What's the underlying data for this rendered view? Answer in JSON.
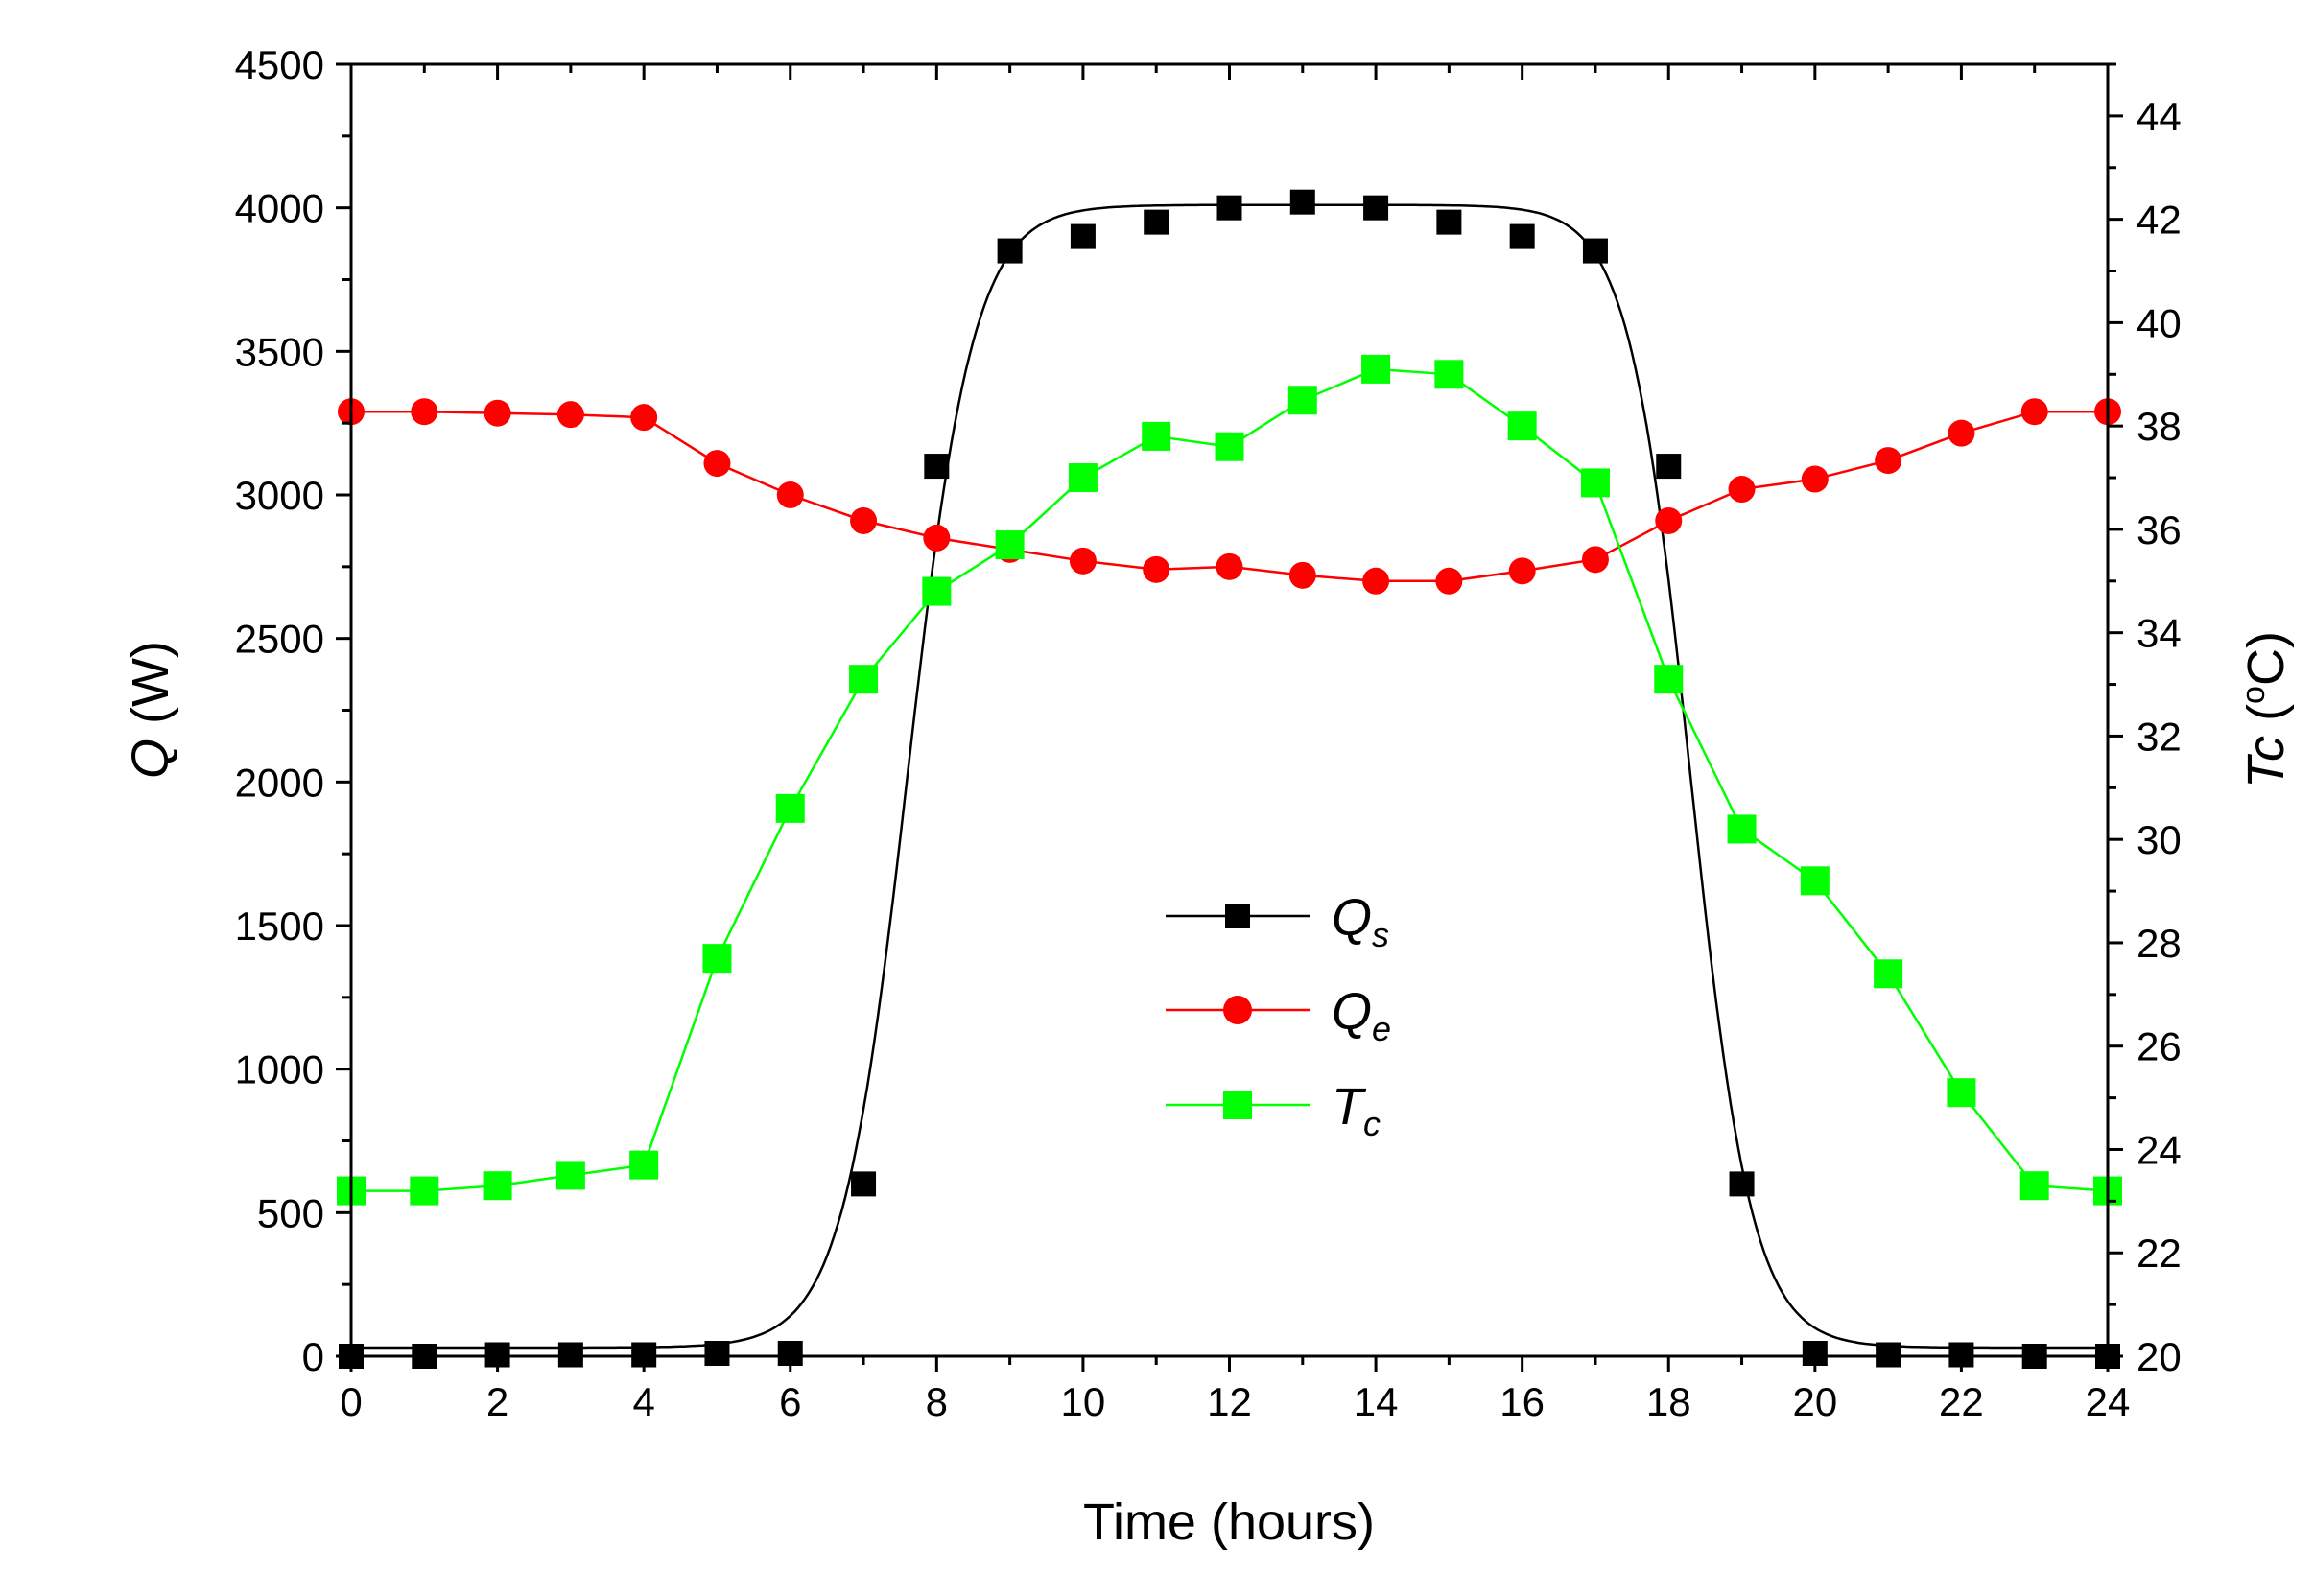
{
  "chart_data": {
    "type": "line",
    "title": "",
    "xlabel": "Time (hours)",
    "ylabel_left": {
      "main": "Q",
      "unit": " (W)"
    },
    "ylabel_right": {
      "main": "Tc",
      "unit": " (",
      "deg": "o",
      "unit_end": "C)"
    },
    "xlim": [
      0,
      24
    ],
    "ylim_left": [
      0,
      4500
    ],
    "ylim_right": [
      20,
      45
    ],
    "xticks": [
      "0",
      "2",
      "4",
      "6",
      "8",
      "10",
      "12",
      "14",
      "16",
      "18",
      "20",
      "22",
      "24"
    ],
    "yticks_left": [
      "0",
      "500",
      "1000",
      "1500",
      "2000",
      "2500",
      "3000",
      "3500",
      "4000",
      "4500"
    ],
    "yticks_right": [
      "20",
      "22",
      "24",
      "26",
      "28",
      "30",
      "32",
      "34",
      "36",
      "38",
      "40",
      "42",
      "44"
    ],
    "series": [
      {
        "name": "Qs",
        "legend_main": "Q",
        "legend_sub": "s",
        "axis": "left",
        "color": "#000000",
        "marker": "square",
        "x": [
          0,
          1,
          2,
          3,
          4,
          5,
          6,
          7,
          8,
          9,
          10,
          11,
          12,
          13,
          14,
          15,
          16,
          17,
          18,
          19,
          20,
          21,
          22,
          23,
          24
        ],
        "values": [
          0,
          0,
          5,
          5,
          5,
          10,
          10,
          600,
          3100,
          3850,
          3900,
          3950,
          4000,
          4020,
          4000,
          3950,
          3900,
          3850,
          3100,
          600,
          10,
          5,
          5,
          0,
          0
        ],
        "fit_line": true
      },
      {
        "name": "Qe",
        "legend_main": "Q",
        "legend_sub": "e",
        "axis": "left",
        "color": "#ff0000",
        "marker": "circle",
        "x": [
          0,
          1,
          2,
          3,
          4,
          5,
          6,
          7,
          8,
          9,
          10,
          11,
          12,
          13,
          14,
          15,
          16,
          17,
          18,
          19,
          20,
          21,
          22,
          23,
          24
        ],
        "values": [
          3290,
          3290,
          3285,
          3280,
          3270,
          3110,
          3000,
          2910,
          2850,
          2810,
          2770,
          2740,
          2750,
          2720,
          2700,
          2700,
          2735,
          2775,
          2910,
          3020,
          3055,
          3120,
          3215,
          3290,
          3290
        ]
      },
      {
        "name": "Tc",
        "legend_main": "T",
        "legend_sub": "c",
        "axis": "right",
        "color": "#00ff00",
        "marker": "square",
        "x": [
          0,
          1,
          2,
          3,
          4,
          5,
          6,
          7,
          8,
          9,
          10,
          11,
          12,
          13,
          14,
          15,
          16,
          17,
          18,
          19,
          20,
          21,
          22,
          23,
          24
        ],
        "values": [
          23.2,
          23.2,
          23.3,
          23.5,
          23.7,
          27.7,
          30.6,
          33.1,
          34.8,
          35.7,
          37.0,
          37.8,
          37.6,
          38.5,
          39.1,
          39.0,
          38.0,
          36.9,
          33.1,
          30.2,
          29.2,
          27.4,
          25.1,
          23.3,
          23.2
        ]
      }
    ],
    "legend_position": "center"
  }
}
